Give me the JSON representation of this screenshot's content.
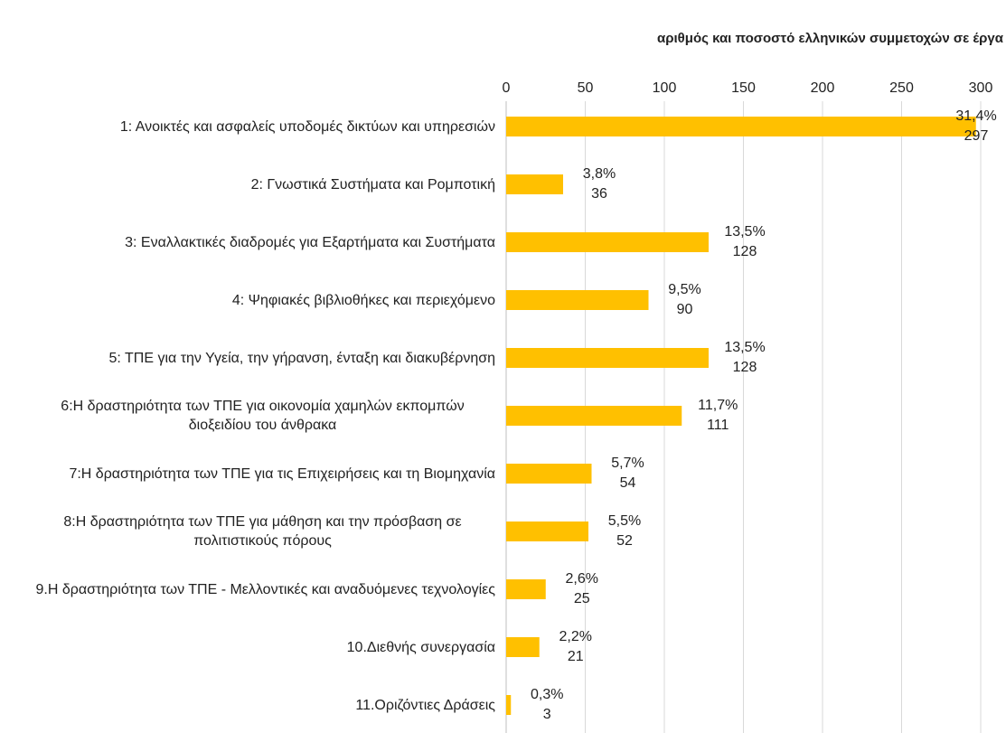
{
  "chart_data": {
    "type": "barh",
    "title": "αριθμός και ποσοστό ελληνικών  συμμετοχών σε έργα",
    "categories": [
      "1: Ανοικτές και ασφαλείς υποδομές δικτύων και υπηρεσιών",
      "2: Γνωστικά Συστήματα και Ρομποτική",
      "3: Εναλλακτικές διαδρομές για Εξαρτήματα και Συστήματα",
      "4: Ψηφιακές βιβλιοθήκες και περιεχόμενο",
      "5: ΤΠΕ για την Υγεία, την γήρανση, ένταξη και διακυβέρνηση",
      "6:Η δραστηριότητα των ΤΠΕ για οικονομία χαμηλών εκπομπών διοξειδίου του άνθρακα",
      "7:Η δραστηριότητα των ΤΠΕ για τις Επιχειρήσεις και τη Βιομηχανία",
      "8:Η δραστηριότητα των ΤΠΕ για μάθηση και την πρόσβαση σε πολιτιστικούς πόρους",
      "9.Η δραστηριότητα των ΤΠΕ - Μελλοντικές και αναδυόμενες τεχνολογίες",
      "10.Διεθνής συνεργασία",
      "11.Οριζόντιες Δράσεις"
    ],
    "values": [
      297,
      36,
      128,
      90,
      128,
      111,
      54,
      52,
      25,
      21,
      3
    ],
    "percent_labels": [
      "31,4%",
      "3,8%",
      "13,5%",
      "9,5%",
      "13,5%",
      "11,7%",
      "5,7%",
      "5,5%",
      "2,6%",
      "2,2%",
      "0,3%"
    ],
    "color": "#ffc000",
    "xlim": [
      0,
      300
    ],
    "xticks": [
      0,
      50,
      100,
      150,
      200,
      250,
      300
    ],
    "grid": true
  }
}
